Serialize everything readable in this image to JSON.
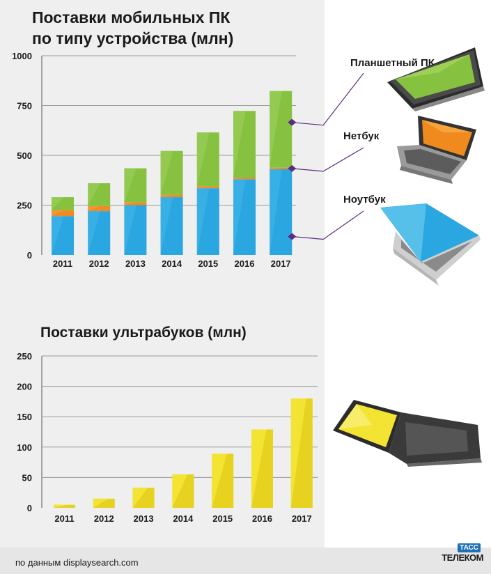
{
  "chart1": {
    "title_line1": "Поставки мобильных ПК",
    "title_line2": "по типу устройства (млн)",
    "legend": {
      "tablet": "Планшетный ПК",
      "netbook": "Нетбук",
      "notebook": "Ноутбук"
    }
  },
  "chart2": {
    "title": "Поставки ультрабуков (млн)"
  },
  "footer": {
    "source": "по данным displaysearch.com",
    "logo_top": "ТАСС",
    "logo_bottom": "ТЕЛЕКОМ"
  },
  "colors": {
    "notebook": "#2aa6e0",
    "netbook": "#ef8b22",
    "tablet": "#86c240",
    "ultrabook": "#f3e433",
    "connector": "#5a2d82"
  },
  "chart_data": [
    {
      "type": "bar",
      "stacked": true,
      "title": "Поставки мобильных ПК по типу устройства (млн)",
      "categories": [
        "2011",
        "2012",
        "2013",
        "2014",
        "2015",
        "2016",
        "2017"
      ],
      "series": [
        {
          "name": "Ноутбук",
          "values": [
            195,
            220,
            250,
            290,
            335,
            380,
            430
          ]
        },
        {
          "name": "Нетбук",
          "values": [
            30,
            25,
            15,
            12,
            10,
            8,
            8
          ]
        },
        {
          "name": "Планшетный ПК",
          "values": [
            65,
            115,
            170,
            220,
            270,
            335,
            385
          ]
        }
      ],
      "ylim": [
        0,
        1000
      ],
      "yticks": [
        "0",
        "250",
        "500",
        "750",
        "1000"
      ],
      "grid": true,
      "legend": "right"
    },
    {
      "type": "bar",
      "title": "Поставки ультрабуков (млн)",
      "categories": [
        "2011",
        "2012",
        "2013",
        "2014",
        "2015",
        "2016",
        "2017"
      ],
      "values": [
        5,
        15,
        33,
        55,
        89,
        129,
        180
      ],
      "ylim": [
        0,
        250
      ],
      "yticks": [
        "0",
        "50",
        "100",
        "150",
        "200",
        "250"
      ],
      "grid": true
    }
  ]
}
